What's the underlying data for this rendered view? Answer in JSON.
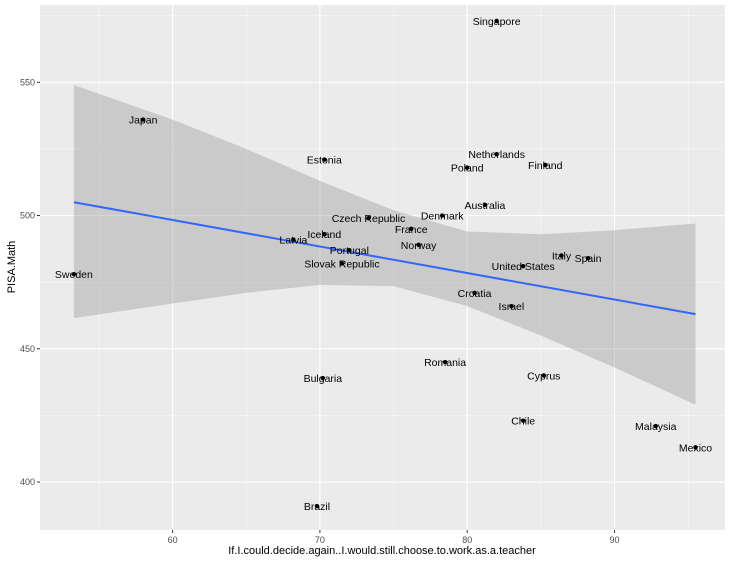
{
  "chart_data": {
    "type": "scatter",
    "xlabel": "If.I.could.decide.again..I.would.still.choose.to.work.as.a.teacher",
    "ylabel": "PISA.Math",
    "xlim": [
      51.0,
      97.5
    ],
    "ylim": [
      382,
      579
    ],
    "x_ticks": [
      60,
      70,
      80,
      90
    ],
    "y_ticks": [
      400,
      450,
      500,
      550
    ],
    "grid": true,
    "points": [
      {
        "label": "Singapore",
        "x": 82.0,
        "y": 573
      },
      {
        "label": "Japan",
        "x": 58.0,
        "y": 536
      },
      {
        "label": "Estonia",
        "x": 70.3,
        "y": 521
      },
      {
        "label": "Netherlands",
        "x": 82.0,
        "y": 523
      },
      {
        "label": "Poland",
        "x": 80.0,
        "y": 518
      },
      {
        "label": "Finland",
        "x": 85.3,
        "y": 519
      },
      {
        "label": "Australia",
        "x": 81.2,
        "y": 504
      },
      {
        "label": "Denmark",
        "x": 78.3,
        "y": 500
      },
      {
        "label": "Czech Republic",
        "x": 73.3,
        "y": 499
      },
      {
        "label": "France",
        "x": 76.2,
        "y": 495
      },
      {
        "label": "Iceland",
        "x": 70.3,
        "y": 493
      },
      {
        "label": "Latvia",
        "x": 68.2,
        "y": 491
      },
      {
        "label": "Norway",
        "x": 76.7,
        "y": 489
      },
      {
        "label": "Portugal",
        "x": 72.0,
        "y": 487
      },
      {
        "label": "Italy",
        "x": 86.4,
        "y": 485
      },
      {
        "label": "Spain",
        "x": 88.2,
        "y": 484
      },
      {
        "label": "United States",
        "x": 83.8,
        "y": 481
      },
      {
        "label": "Slovak Republic",
        "x": 71.5,
        "y": 482
      },
      {
        "label": "Sweden",
        "x": 53.3,
        "y": 478
      },
      {
        "label": "Croatia",
        "x": 80.5,
        "y": 471
      },
      {
        "label": "Israel",
        "x": 83.0,
        "y": 466
      },
      {
        "label": "Romania",
        "x": 78.5,
        "y": 445
      },
      {
        "label": "Cyprus",
        "x": 85.2,
        "y": 440
      },
      {
        "label": "Bulgaria",
        "x": 70.2,
        "y": 439
      },
      {
        "label": "Chile",
        "x": 83.8,
        "y": 423
      },
      {
        "label": "Malaysia",
        "x": 92.8,
        "y": 421
      },
      {
        "label": "Mexico",
        "x": 95.5,
        "y": 413
      },
      {
        "label": "Brazil",
        "x": 69.8,
        "y": 391
      }
    ],
    "fit_line": {
      "x": [
        53.3,
        95.5
      ],
      "y": [
        505,
        463
      ]
    },
    "confidence_band": {
      "x": [
        53.3,
        60,
        65,
        70,
        75,
        80,
        85,
        90,
        95.5
      ],
      "lower": [
        461.5,
        467,
        471,
        474,
        473.5,
        466,
        455,
        443,
        429
      ],
      "upper": [
        549,
        536,
        525,
        513,
        502,
        494,
        493,
        494.5,
        497
      ]
    },
    "colors": {
      "panel_bg": "#ebebeb",
      "grid_major": "#ffffff",
      "line": "#3366ff",
      "band": "#999999",
      "point": "#000000"
    }
  }
}
